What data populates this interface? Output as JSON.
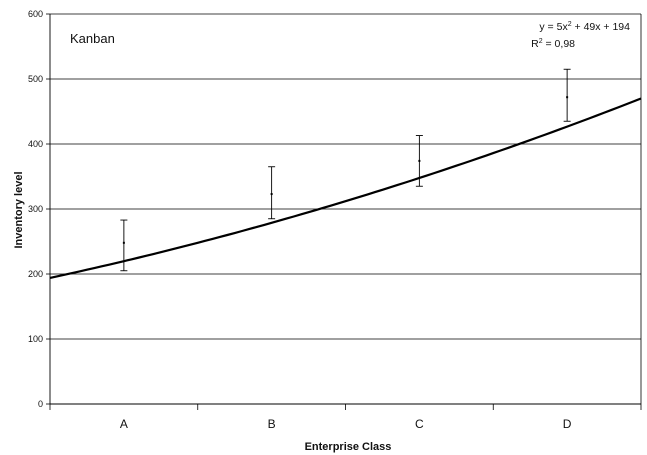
{
  "chart_data": {
    "type": "line",
    "title": "Kanban",
    "xlabel": "Enterprise Class",
    "ylabel": "Inventory level",
    "categories": [
      "A",
      "B",
      "C",
      "D"
    ],
    "ylim": [
      0,
      600
    ],
    "yticks": [
      0,
      100,
      200,
      300,
      400,
      500,
      600
    ],
    "grid": true,
    "series": [
      {
        "type": "points_with_error_bars",
        "values": [
          248,
          323,
          374,
          472
        ],
        "error_low": [
          205,
          285,
          335,
          435
        ],
        "error_high": [
          283,
          365,
          413,
          515
        ]
      }
    ],
    "trendline": {
      "kind": "polynomial",
      "coefficients": [
        5,
        49,
        194
      ],
      "x_offset": 0.5
    },
    "annotations": {
      "equation_prefix": "y = 5x",
      "equation_sup": "2",
      "equation_suffix": " + 49x + 194",
      "r2_prefix": "R",
      "r2_sup": "2",
      "r2_suffix": " = 0,98"
    }
  }
}
